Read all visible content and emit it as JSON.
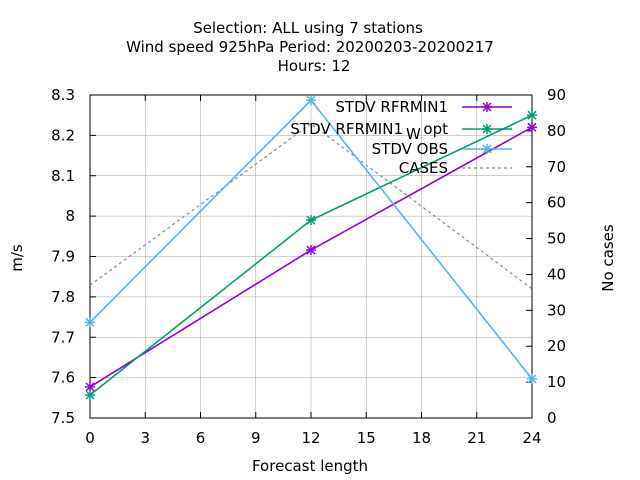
{
  "chart_data": {
    "type": "line",
    "title_lines": [
      "Selection: ALL using     7 stations",
      "Wind speed 925hPa   Period: 20200203-20200217",
      "Hours:  12"
    ],
    "xlabel": "Forecast length",
    "ylabel": "m/s",
    "y2label": "No cases",
    "xlim": [
      0,
      24
    ],
    "ylim": [
      7.5,
      8.3
    ],
    "y2lim": [
      0,
      90
    ],
    "x_ticks": [
      0,
      3,
      6,
      9,
      12,
      15,
      18,
      21,
      24
    ],
    "y_ticks": [
      7.5,
      7.6,
      7.7,
      7.8,
      7.9,
      8,
      8.1,
      8.2,
      8.3
    ],
    "y2_ticks": [
      0,
      10,
      20,
      30,
      40,
      50,
      60,
      70,
      80,
      90
    ],
    "legend_position": "top-right",
    "series": [
      {
        "name": "STDV RFRMIN1",
        "axis": "y",
        "color": "#9400d3",
        "style": "line-points",
        "x": [
          0,
          12,
          24
        ],
        "y": [
          7.577,
          7.916,
          8.22
        ]
      },
      {
        "name": "STDV RFRMIN1_W opt",
        "legend_main": "STDV RFRMIN1",
        "legend_sub": "W",
        "legend_tail": "opt",
        "axis": "y",
        "color": "#009e73",
        "style": "line-points",
        "x": [
          0,
          12,
          24
        ],
        "y": [
          7.557,
          7.99,
          8.25
        ]
      },
      {
        "name": "STDV OBS",
        "axis": "y",
        "color": "#56b4e9",
        "style": "line-points",
        "x": [
          0,
          12,
          24
        ],
        "y": [
          7.737,
          8.287,
          7.597
        ]
      },
      {
        "name": "CASES",
        "axis": "y2",
        "color": "#888888",
        "style": "dashed",
        "x": [
          0,
          12,
          24
        ],
        "y": [
          37,
          82,
          36
        ]
      }
    ]
  }
}
